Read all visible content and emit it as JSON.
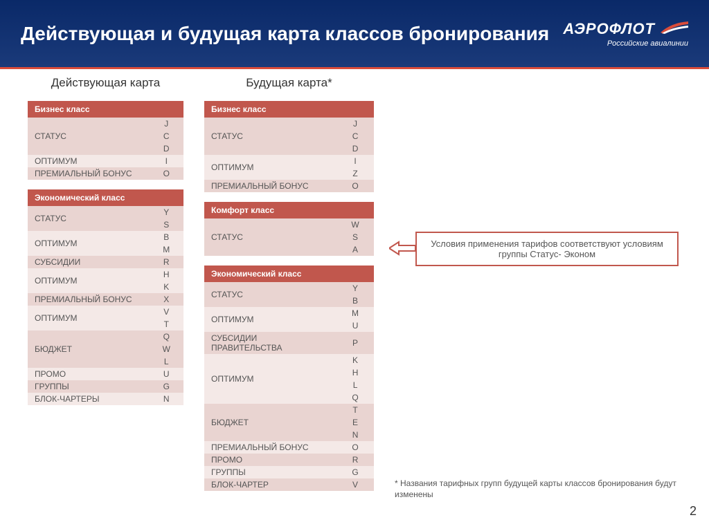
{
  "header": {
    "title": "Действующая и будущая карта классов бронирования",
    "logo_main": "АЭРОФЛОТ",
    "logo_sub": "Российские авиалинии"
  },
  "columns": {
    "current": {
      "title": "Действующая карта",
      "sections": [
        {
          "header": "Бизнес класс",
          "rows": [
            {
              "label": "СТАТУС",
              "codes": [
                "J",
                "C",
                "D"
              ],
              "shade": "a"
            },
            {
              "label": "ОПТИМУМ",
              "codes": [
                "I"
              ],
              "shade": "b"
            },
            {
              "label": "ПРЕМИАЛЬНЫЙ БОНУС",
              "codes": [
                "O"
              ],
              "shade": "a"
            }
          ]
        },
        {
          "header": "Экономический класс",
          "rows": [
            {
              "label": "СТАТУС",
              "codes": [
                "Y",
                "S"
              ],
              "shade": "a"
            },
            {
              "label": "ОПТИМУМ",
              "codes": [
                "B",
                "M"
              ],
              "shade": "b"
            },
            {
              "label": "СУБСИДИИ",
              "codes": [
                "R"
              ],
              "shade": "a"
            },
            {
              "label": "ОПТИМУМ",
              "codes": [
                "H",
                "K"
              ],
              "shade": "b"
            },
            {
              "label": "ПРЕМИАЛЬНЫЙ БОНУС",
              "codes": [
                "X"
              ],
              "shade": "a"
            },
            {
              "label": "ОПТИМУМ",
              "codes": [
                "V",
                "T"
              ],
              "shade": "b"
            },
            {
              "label": "БЮДЖЕТ",
              "codes": [
                "Q",
                "W",
                "L"
              ],
              "shade": "a"
            },
            {
              "label": "ПРОМО",
              "codes": [
                "U"
              ],
              "shade": "b"
            },
            {
              "label": "ГРУППЫ",
              "codes": [
                "G"
              ],
              "shade": "a"
            },
            {
              "label": "БЛОК-ЧАРТЕРЫ",
              "codes": [
                "N"
              ],
              "shade": "b"
            }
          ]
        }
      ]
    },
    "future": {
      "title": "Будущая карта*",
      "sections": [
        {
          "header": "Бизнес класс",
          "rows": [
            {
              "label": "СТАТУС",
              "codes": [
                "J",
                "C",
                "D"
              ],
              "shade": "a"
            },
            {
              "label": "ОПТИМУМ",
              "codes": [
                "I",
                "Z"
              ],
              "shade": "b"
            },
            {
              "label": "ПРЕМИАЛЬНЫЙ БОНУС",
              "codes": [
                "O"
              ],
              "shade": "a"
            }
          ]
        },
        {
          "header": "Комфорт класс",
          "rows": [
            {
              "label": "СТАТУС",
              "codes": [
                "W",
                "S",
                "A"
              ],
              "shade": "a"
            }
          ]
        },
        {
          "header": "Экономический класс",
          "rows": [
            {
              "label": "СТАТУС",
              "codes": [
                "Y",
                "B"
              ],
              "shade": "a"
            },
            {
              "label": "ОПТИМУМ",
              "codes": [
                "M",
                "U"
              ],
              "shade": "b"
            },
            {
              "label": "СУБСИДИИ ПРАВИТЕЛЬСТВА",
              "codes": [
                "P"
              ],
              "shade": "a"
            },
            {
              "label": "ОПТИМУМ",
              "codes": [
                "K",
                "H",
                "L",
                "Q"
              ],
              "shade": "b"
            },
            {
              "label": "БЮДЖЕТ",
              "codes": [
                "T",
                "E",
                "N"
              ],
              "shade": "a"
            },
            {
              "label": "ПРЕМИАЛЬНЫЙ БОНУС",
              "codes": [
                "O"
              ],
              "shade": "b"
            },
            {
              "label": "ПРОМО",
              "codes": [
                "R"
              ],
              "shade": "a"
            },
            {
              "label": "ГРУППЫ",
              "codes": [
                "G"
              ],
              "shade": "b"
            },
            {
              "label": "БЛОК-ЧАРТЕР",
              "codes": [
                "V"
              ],
              "shade": "a"
            }
          ]
        }
      ]
    }
  },
  "callout": "Условия применения тарифов соответствуют условиям группы Статус- Эконом",
  "footnote": "* Названия тарифных групп будущей карты классов бронирования будут изменены",
  "page_number": "2",
  "colors": {
    "header_bg": "#0a2968",
    "accent": "#c1574d",
    "row_a": "#e9d4d1",
    "row_b": "#f4e9e7",
    "text": "#555555"
  }
}
